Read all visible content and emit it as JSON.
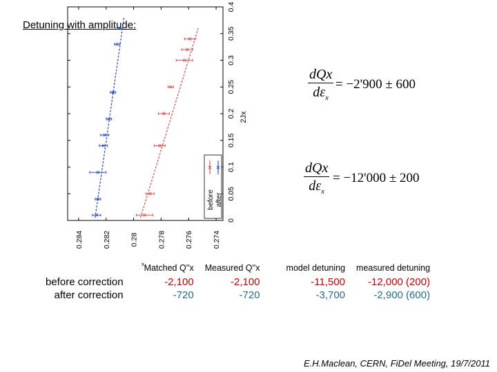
{
  "title": "Detuning with amplitude:",
  "equations": [
    {
      "numerator": "dQx",
      "denominator_main": "dε",
      "denominator_sub": "x",
      "rhs": "= −2'900 ± 600"
    },
    {
      "numerator": "dQx",
      "denominator_main": "dε",
      "denominator_sub": "x",
      "rhs": "= −12'000 ± 200"
    }
  ],
  "table": {
    "headers": [
      "Matched Q''x",
      "Measured Q''x",
      "model detuning",
      "measured detuning"
    ],
    "rows": [
      {
        "label": "before correction",
        "values": [
          "-2,100",
          "-2,100",
          "-11,500",
          "-12,000 (200)"
        ],
        "color": "#c00000"
      },
      {
        "label": "after correction",
        "values": [
          "-720",
          "-720",
          "-3,700",
          "-2,900 (600)"
        ],
        "color": "#1f6b8c"
      }
    ]
  },
  "footer": "E.H.Maclean, CERN, FiDel Meeting, 19/7/2011",
  "chart_data": {
    "type": "scatter",
    "xlabel": "2Jx",
    "ylabel": "",
    "x_ticks": [
      "0",
      "0.05",
      "0.1",
      "0.15",
      "0.2",
      "0.25",
      "0.3",
      "0.35",
      "0.4"
    ],
    "y_ticks": [
      "0.274",
      "0.276",
      "0.278",
      "0.28",
      "0.282",
      "0.284"
    ],
    "xlim": [
      0,
      0.4
    ],
    "ylim": [
      0.2735,
      0.2848
    ],
    "corner_label": "x",
    "legend": {
      "placement": "bottom-right",
      "entries": [
        "before",
        "after"
      ]
    },
    "series": [
      {
        "name": "before",
        "color": "#e05050",
        "points": [
          {
            "x": 0.01,
            "y": 0.2792,
            "err": 0.0006
          },
          {
            "x": 0.05,
            "y": 0.2788,
            "err": 0.0003
          },
          {
            "x": 0.14,
            "y": 0.2781,
            "err": 0.0004
          },
          {
            "x": 0.2,
            "y": 0.2778,
            "err": 0.0004
          },
          {
            "x": 0.25,
            "y": 0.2773,
            "err": 0.0002
          },
          {
            "x": 0.3,
            "y": 0.2763,
            "err": 0.0006
          },
          {
            "x": 0.32,
            "y": 0.2761,
            "err": 0.0004
          },
          {
            "x": 0.34,
            "y": 0.2759,
            "err": 0.0004
          }
        ],
        "fit": [
          [
            0.005,
            0.2795
          ],
          [
            0.36,
            0.2753
          ]
        ]
      },
      {
        "name": "after",
        "color": "#3050c0",
        "points": [
          {
            "x": 0.01,
            "y": 0.2827,
            "err": 0.0003
          },
          {
            "x": 0.04,
            "y": 0.2826,
            "err": 0.0002
          },
          {
            "x": 0.09,
            "y": 0.2826,
            "err": 0.0006
          },
          {
            "x": 0.14,
            "y": 0.2822,
            "err": 0.0003
          },
          {
            "x": 0.16,
            "y": 0.2821,
            "err": 0.0003
          },
          {
            "x": 0.19,
            "y": 0.2818,
            "err": 0.0002
          },
          {
            "x": 0.24,
            "y": 0.2815,
            "err": 0.0002
          },
          {
            "x": 0.33,
            "y": 0.2812,
            "err": 0.0002
          },
          {
            "x": 0.36,
            "y": 0.281,
            "err": 0.0002
          }
        ],
        "fit": [
          [
            0.005,
            0.2828
          ],
          [
            0.38,
            0.2807
          ]
        ]
      }
    ]
  }
}
